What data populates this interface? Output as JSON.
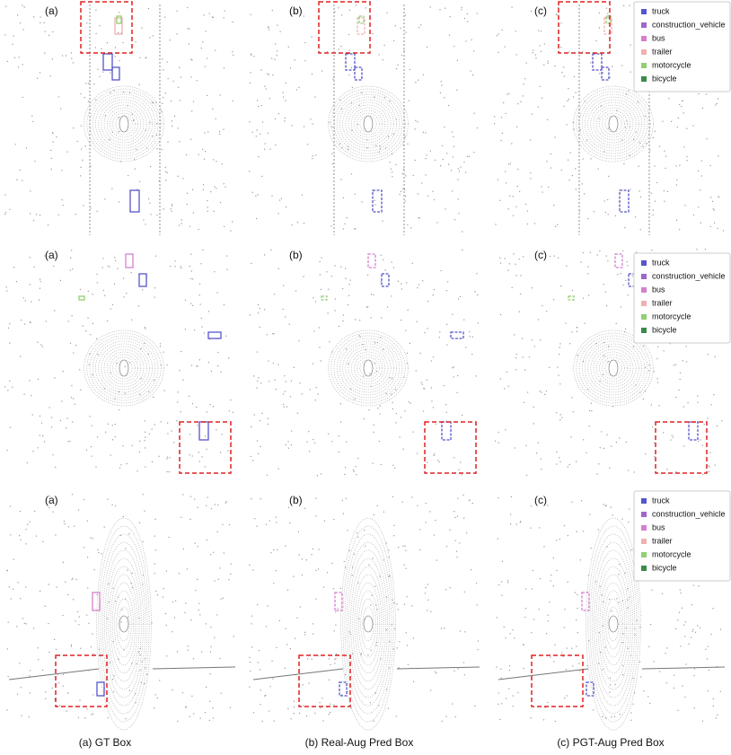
{
  "rows": [
    {
      "panels": [
        "(a)",
        "(b)",
        "(c)"
      ]
    },
    {
      "panels": [
        "(a)",
        "(b)",
        "(c)"
      ]
    },
    {
      "panels": [
        "(a)",
        "(b)",
        "(c)"
      ]
    }
  ],
  "legend": [
    {
      "label": "truck",
      "color": "#5555cc"
    },
    {
      "label": "construction_vehicle",
      "color": "#a066cc"
    },
    {
      "label": "bus",
      "color": "#d67fcf"
    },
    {
      "label": "trailer",
      "color": "#f2b0b0"
    },
    {
      "label": "motorcycle",
      "color": "#90d070"
    },
    {
      "label": "bicycle",
      "color": "#3a8a4a"
    }
  ],
  "captions": [
    "(a) GT Box",
    "(b) Real-Aug Pred Box",
    "(c) PGT-Aug Pred Box"
  ]
}
